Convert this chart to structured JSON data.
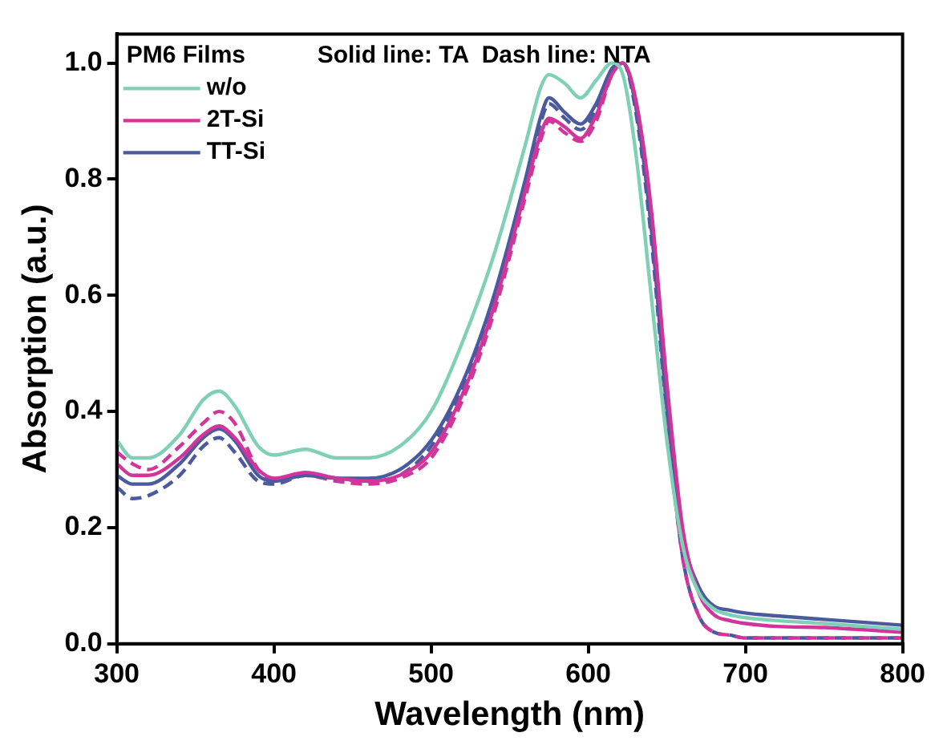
{
  "chart_data": {
    "type": "line",
    "xlabel": "Wavelength (nm)",
    "ylabel": "Absorption (a.u.)",
    "legend_title": "PM6 Films",
    "annotations": [
      "Solid line: TA  Dash line: NTA"
    ],
    "x": [
      300,
      310,
      320,
      340,
      355,
      365,
      375,
      390,
      400,
      420,
      440,
      460,
      480,
      500,
      520,
      540,
      560,
      570,
      575,
      585,
      595,
      605,
      615,
      622,
      630,
      640,
      650,
      660,
      670,
      680,
      690,
      700,
      720,
      750,
      800
    ],
    "series": [
      {
        "name": "w/o",
        "color": "#7fd0b6",
        "line_style": "solid",
        "values": [
          0.35,
          0.32,
          0.32,
          0.36,
          0.42,
          0.435,
          0.41,
          0.34,
          0.325,
          0.335,
          0.32,
          0.32,
          0.34,
          0.4,
          0.52,
          0.67,
          0.86,
          0.96,
          0.98,
          0.965,
          0.94,
          0.97,
          1.0,
          0.98,
          0.85,
          0.6,
          0.35,
          0.17,
          0.09,
          0.06,
          0.05,
          0.045,
          0.04,
          0.035,
          0.025
        ]
      },
      {
        "name": "2T-Si",
        "color": "#d2359a",
        "line_style": "solid",
        "values": [
          0.31,
          0.29,
          0.29,
          0.32,
          0.36,
          0.375,
          0.355,
          0.3,
          0.285,
          0.295,
          0.285,
          0.28,
          0.29,
          0.33,
          0.43,
          0.58,
          0.78,
          0.88,
          0.905,
          0.89,
          0.87,
          0.91,
          0.98,
          1.0,
          0.94,
          0.75,
          0.45,
          0.2,
          0.09,
          0.05,
          0.04,
          0.035,
          0.03,
          0.028,
          0.02
        ]
      },
      {
        "name": "TT-Si",
        "color": "#4b5a9e",
        "line_style": "solid",
        "values": [
          0.29,
          0.275,
          0.275,
          0.31,
          0.355,
          0.37,
          0.35,
          0.29,
          0.28,
          0.29,
          0.285,
          0.285,
          0.3,
          0.35,
          0.45,
          0.6,
          0.8,
          0.91,
          0.94,
          0.915,
          0.895,
          0.93,
          0.99,
          1.0,
          0.93,
          0.72,
          0.42,
          0.19,
          0.1,
          0.065,
          0.058,
          0.053,
          0.048,
          0.042,
          0.032
        ]
      },
      {
        "color": "#d2359a",
        "line_style": "dashed",
        "values": [
          0.33,
          0.31,
          0.3,
          0.34,
          0.38,
          0.4,
          0.38,
          0.3,
          0.28,
          0.29,
          0.28,
          0.275,
          0.285,
          0.32,
          0.42,
          0.57,
          0.77,
          0.87,
          0.9,
          0.88,
          0.865,
          0.9,
          0.98,
          1.0,
          0.93,
          0.72,
          0.4,
          0.15,
          0.05,
          0.02,
          0.015,
          0.01,
          0.01,
          0.01,
          0.01
        ]
      },
      {
        "color": "#4b5a9e",
        "line_style": "dashed",
        "values": [
          0.27,
          0.25,
          0.255,
          0.29,
          0.34,
          0.355,
          0.33,
          0.28,
          0.275,
          0.29,
          0.285,
          0.28,
          0.29,
          0.34,
          0.44,
          0.59,
          0.79,
          0.9,
          0.93,
          0.905,
          0.885,
          0.92,
          0.99,
          1.0,
          0.92,
          0.7,
          0.39,
          0.15,
          0.05,
          0.02,
          0.015,
          0.01,
          0.01,
          0.01,
          0.01
        ]
      }
    ],
    "xlim": [
      300,
      800
    ],
    "xticks": [
      300,
      400,
      500,
      600,
      700,
      800
    ],
    "ylim": [
      0,
      1.05
    ],
    "yticks": [
      {
        "value": 0,
        "label": "0.0"
      },
      {
        "value": 0.2,
        "label": "0.2"
      },
      {
        "value": 0.4,
        "label": "0.4"
      },
      {
        "value": 0.6,
        "label": "0.6"
      },
      {
        "value": 0.8,
        "label": "0.8"
      },
      {
        "value": 1,
        "label": "1.0"
      }
    ],
    "grid": false,
    "legend": "top left",
    "marker": "none"
  }
}
